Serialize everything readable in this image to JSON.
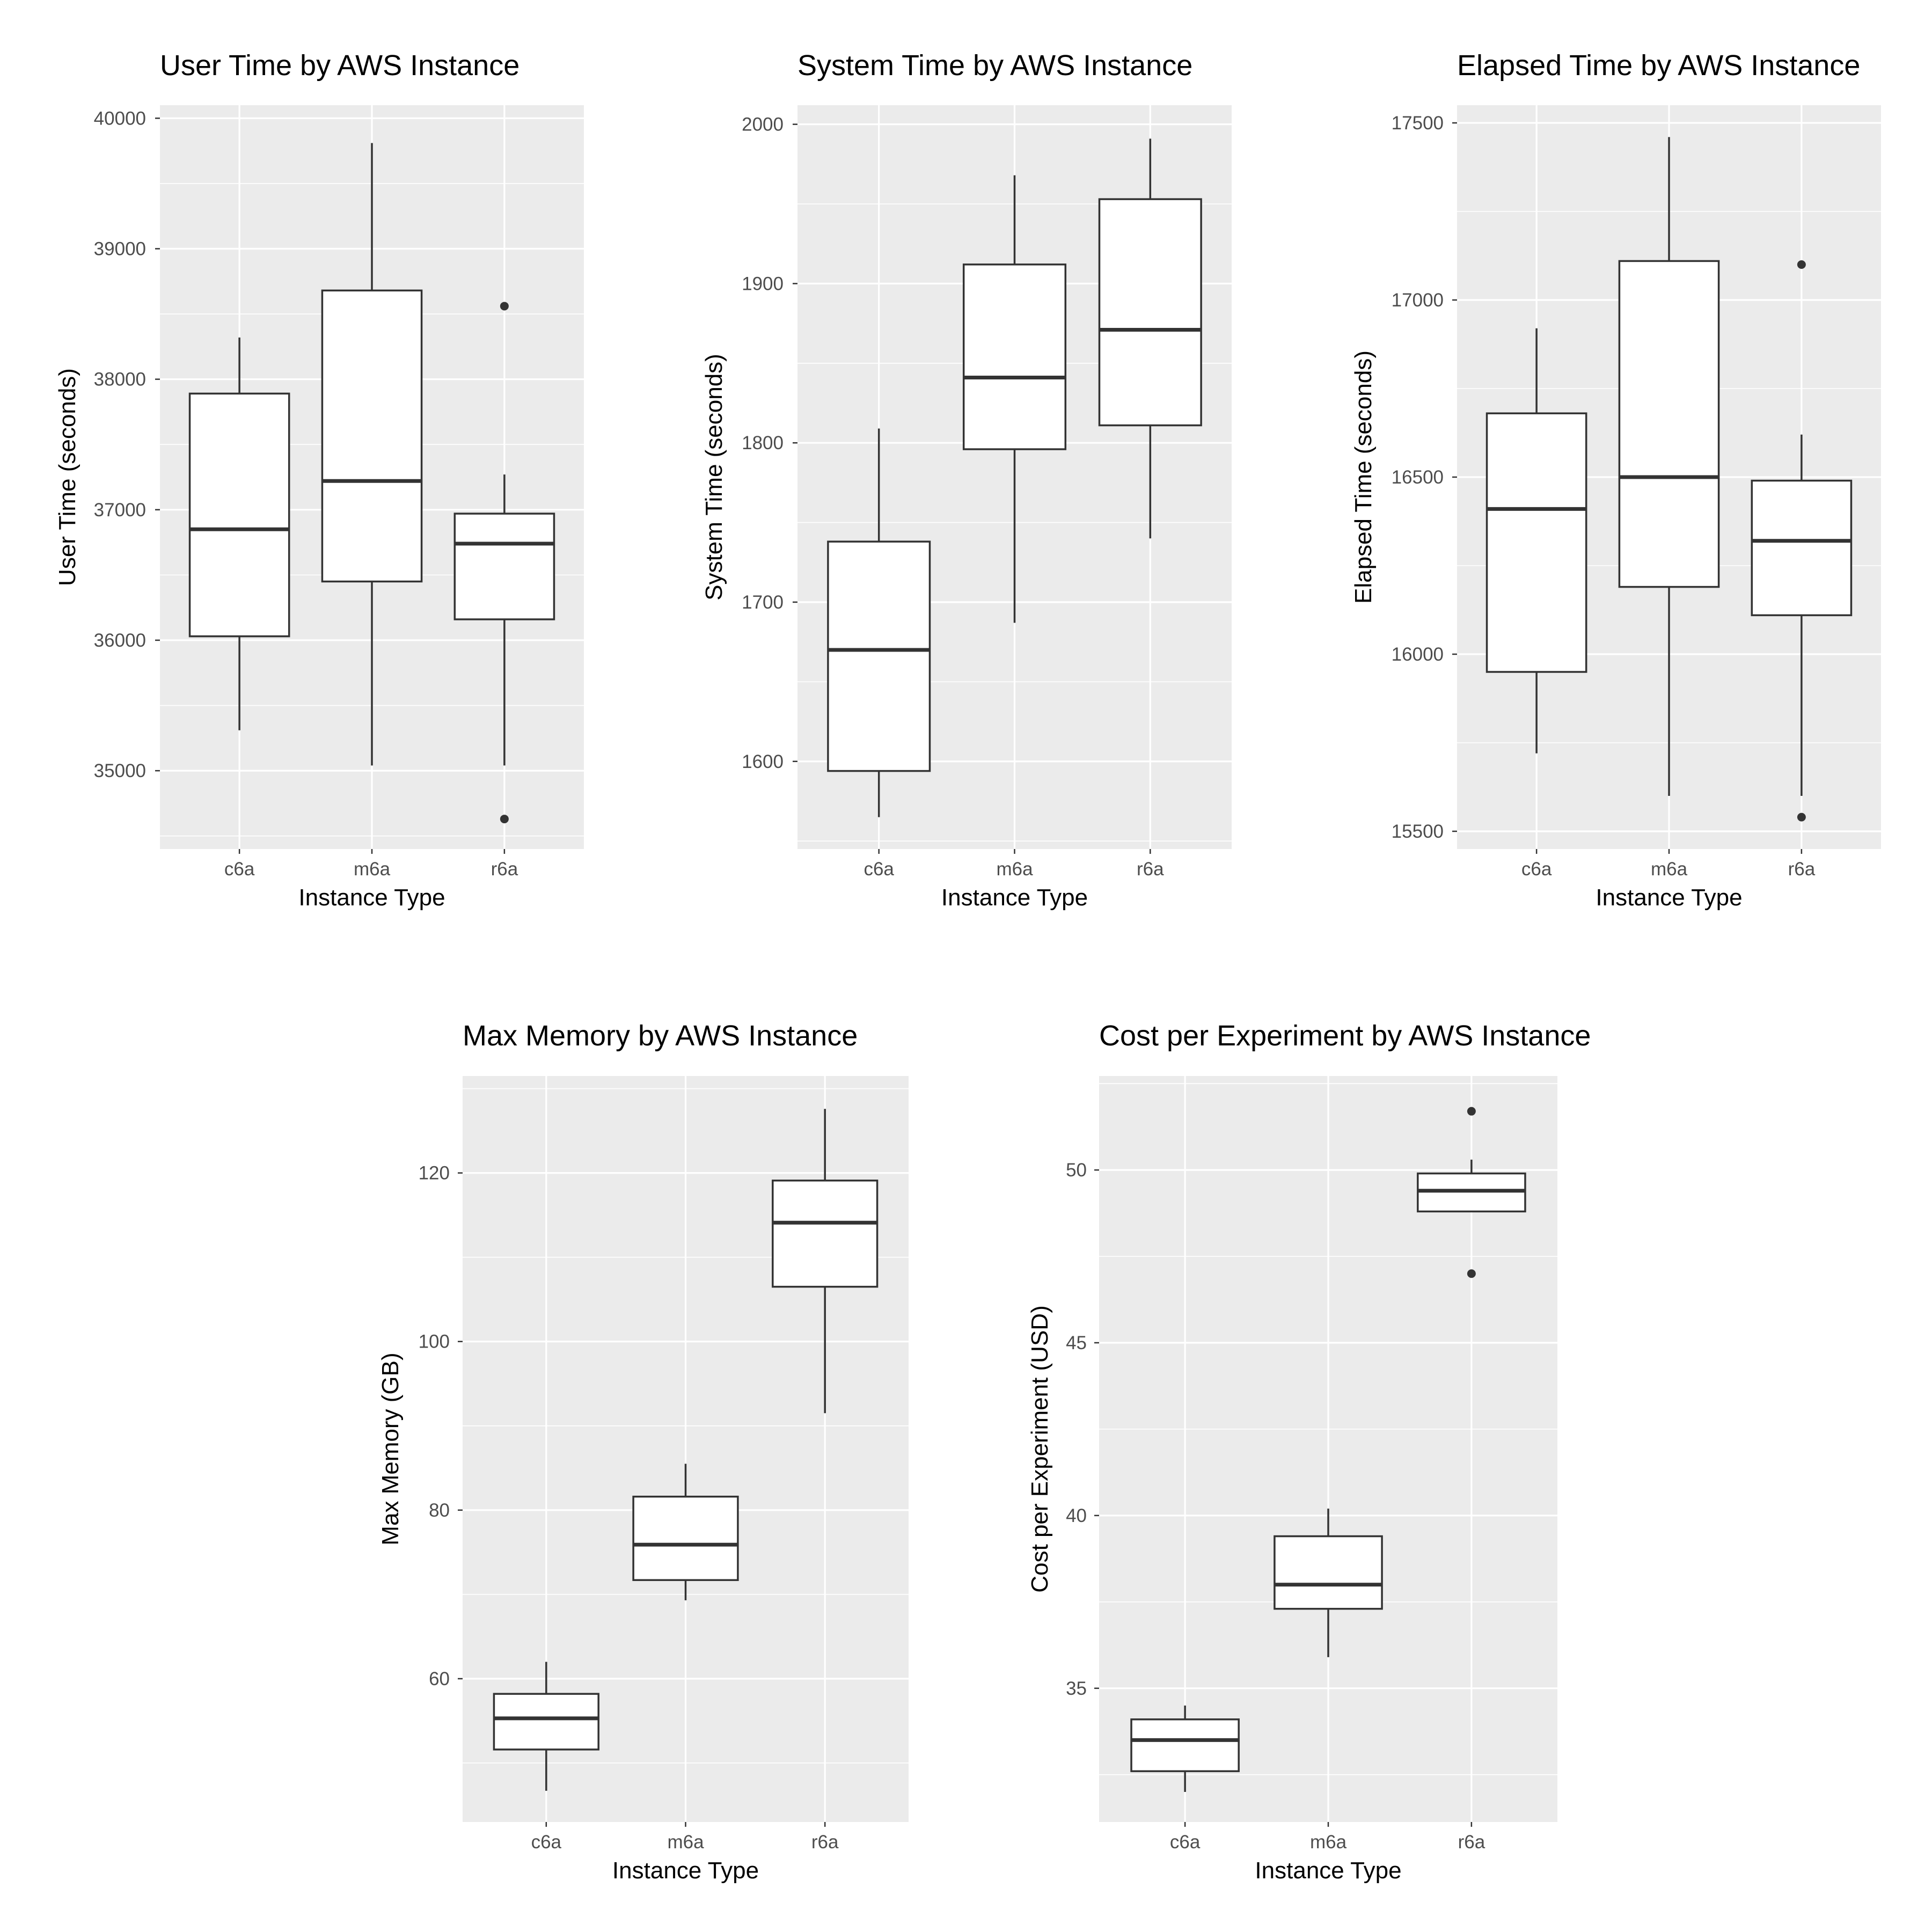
{
  "colors": {
    "panel_background": "#EBEBEB",
    "grid_major": "#FFFFFF",
    "box_fill": "#FFFFFF",
    "box_line": "#333333",
    "tick_text": "#4D4D4D",
    "title_text": "#000000"
  },
  "chart_data": [
    {
      "type": "boxplot",
      "title": "User Time by AWS Instance",
      "xlabel": "Instance Type",
      "ylabel": "User Time (seconds)",
      "categories": [
        "c6a",
        "m6a",
        "r6a"
      ],
      "ylim": [
        34400,
        40100
      ],
      "yticks": [
        35000,
        36000,
        37000,
        38000,
        39000,
        40000
      ],
      "yminor": [
        34500,
        35500,
        36500,
        37500,
        38500,
        39500
      ],
      "boxes": [
        {
          "category": "c6a",
          "lower_whisker": 35310,
          "q1": 36030,
          "median": 36850,
          "q3": 37890,
          "upper_whisker": 38320,
          "outliers": []
        },
        {
          "category": "m6a",
          "lower_whisker": 35040,
          "q1": 36450,
          "median": 37220,
          "q3": 38680,
          "upper_whisker": 39810,
          "outliers": []
        },
        {
          "category": "r6a",
          "lower_whisker": 35040,
          "q1": 36160,
          "median": 36740,
          "q3": 36970,
          "upper_whisker": 37270,
          "outliers": [
            38560,
            34630
          ]
        }
      ]
    },
    {
      "type": "boxplot",
      "title": "System Time by AWS Instance",
      "xlabel": "Instance Type",
      "ylabel": "System Time (seconds)",
      "categories": [
        "c6a",
        "m6a",
        "r6a"
      ],
      "ylim": [
        1545,
        2012
      ],
      "yticks": [
        1600,
        1700,
        1800,
        1900,
        2000
      ],
      "yminor": [
        1550,
        1650,
        1750,
        1850,
        1950
      ],
      "boxes": [
        {
          "category": "c6a",
          "lower_whisker": 1565,
          "q1": 1594,
          "median": 1670,
          "q3": 1738,
          "upper_whisker": 1809,
          "outliers": []
        },
        {
          "category": "m6a",
          "lower_whisker": 1687,
          "q1": 1796,
          "median": 1841,
          "q3": 1912,
          "upper_whisker": 1968,
          "outliers": []
        },
        {
          "category": "r6a",
          "lower_whisker": 1740,
          "q1": 1811,
          "median": 1871,
          "q3": 1953,
          "upper_whisker": 1991,
          "outliers": []
        }
      ]
    },
    {
      "type": "boxplot",
      "title": "Elapsed Time by AWS Instance",
      "xlabel": "Instance Type",
      "ylabel": "Elapsed Time (seconds)",
      "categories": [
        "c6a",
        "m6a",
        "r6a"
      ],
      "ylim": [
        15450,
        17550
      ],
      "yticks": [
        15500,
        16000,
        16500,
        17000,
        17500
      ],
      "yminor": [
        15750,
        16250,
        16750,
        17250
      ],
      "boxes": [
        {
          "category": "c6a",
          "lower_whisker": 15720,
          "q1": 15950,
          "median": 16410,
          "q3": 16680,
          "upper_whisker": 16920,
          "outliers": []
        },
        {
          "category": "m6a",
          "lower_whisker": 15600,
          "q1": 16190,
          "median": 16500,
          "q3": 17110,
          "upper_whisker": 17460,
          "outliers": []
        },
        {
          "category": "r6a",
          "lower_whisker": 15600,
          "q1": 16110,
          "median": 16320,
          "q3": 16490,
          "upper_whisker": 16620,
          "outliers": [
            17100,
            15540
          ]
        }
      ]
    },
    {
      "type": "boxplot",
      "title": "Max Memory by AWS Instance",
      "xlabel": "Instance Type",
      "ylabel": "Max Memory (GB)",
      "categories": [
        "c6a",
        "m6a",
        "r6a"
      ],
      "ylim": [
        43,
        131.5
      ],
      "yticks": [
        60,
        80,
        100,
        120
      ],
      "yminor": [
        50,
        70,
        90,
        110,
        130
      ],
      "boxes": [
        {
          "category": "c6a",
          "lower_whisker": 46.7,
          "q1": 51.6,
          "median": 55.3,
          "q3": 58.2,
          "upper_whisker": 62.0,
          "outliers": []
        },
        {
          "category": "m6a",
          "lower_whisker": 69.3,
          "q1": 71.7,
          "median": 75.9,
          "q3": 81.6,
          "upper_whisker": 85.5,
          "outliers": []
        },
        {
          "category": "r6a",
          "lower_whisker": 91.5,
          "q1": 106.5,
          "median": 114.1,
          "q3": 119.1,
          "upper_whisker": 127.6,
          "outliers": []
        }
      ]
    },
    {
      "type": "boxplot",
      "title": "Cost per Experiment by AWS Instance",
      "xlabel": "Instance Type",
      "ylabel": "Cost per Experiment (USD)",
      "categories": [
        "c6a",
        "m6a",
        "r6a"
      ],
      "ylim": [
        31.13,
        52.72
      ],
      "yticks": [
        35,
        40,
        45,
        50
      ],
      "yminor": [
        32.5,
        37.5,
        42.5,
        47.5,
        52.5
      ],
      "boxes": [
        {
          "category": "c6a",
          "lower_whisker": 32.0,
          "q1": 32.6,
          "median": 33.5,
          "q3": 34.1,
          "upper_whisker": 34.5,
          "outliers": []
        },
        {
          "category": "m6a",
          "lower_whisker": 35.9,
          "q1": 37.3,
          "median": 38.0,
          "q3": 39.4,
          "upper_whisker": 40.2,
          "outliers": []
        },
        {
          "category": "r6a",
          "lower_whisker": 48.8,
          "q1": 48.8,
          "median": 49.4,
          "q3": 49.9,
          "upper_whisker": 50.3,
          "outliers": [
            51.7,
            47.0
          ]
        }
      ]
    }
  ]
}
